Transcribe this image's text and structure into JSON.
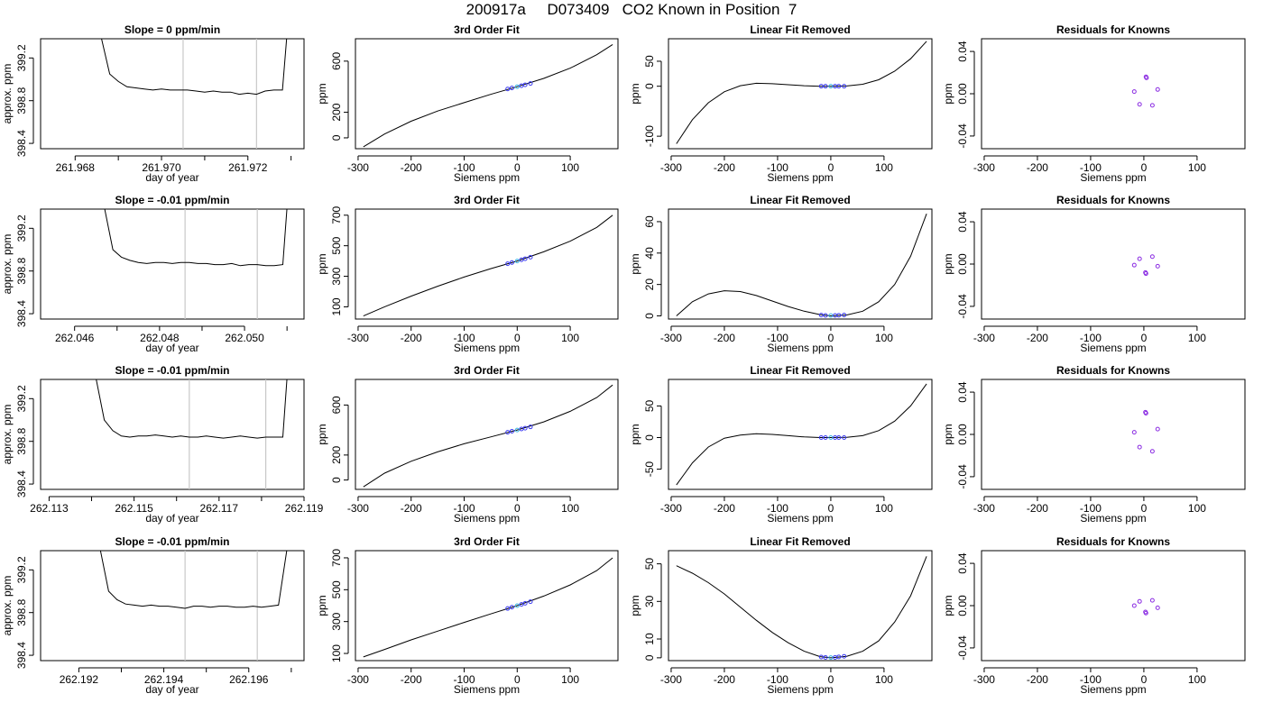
{
  "page_title": "200917a     D073409   CO2 Known in Position  7",
  "colors": {
    "frame": "#000000",
    "line": "#000000",
    "marker_lines": "#c8c8c8",
    "points": "#3b3bf2",
    "mid_point": "#3bb7e6",
    "residual_points": "#8a2be2"
  },
  "chart_data": [
    {
      "type": "line",
      "title": "Slope =  0  ppm/min",
      "xlabel": "day of year",
      "ylabel": "approx. ppm",
      "xlim": [
        261.9672,
        261.9733
      ],
      "ylim": [
        398.35,
        399.38
      ],
      "xticks": [
        261.968,
        261.97,
        261.972
      ],
      "xtick_labels": [
        "261.968",
        "261.970",
        "261.972"
      ],
      "xminor": [
        261.969,
        261.971,
        261.973
      ],
      "yticks": [
        398.4,
        398.8,
        399.2
      ],
      "ytick_labels": [
        "398.4",
        "398.8",
        "399.2"
      ],
      "vlines": [
        261.9705,
        261.9722
      ],
      "x": [
        261.9686,
        261.9688,
        261.969,
        261.9692,
        261.9694,
        261.9696,
        261.9698,
        261.97,
        261.9702,
        261.9704,
        261.9706,
        261.9708,
        261.971,
        261.9712,
        261.9714,
        261.9716,
        261.9718,
        261.972,
        261.9722,
        261.9724,
        261.9726,
        261.9728,
        261.9729
      ],
      "y": [
        399.4,
        399.05,
        398.98,
        398.93,
        398.92,
        398.91,
        398.9,
        398.91,
        398.9,
        398.9,
        398.9,
        398.89,
        398.88,
        398.89,
        398.88,
        398.88,
        398.86,
        398.87,
        398.86,
        398.89,
        398.9,
        398.9,
        399.4
      ]
    },
    {
      "type": "line",
      "title": "3rd Order Fit",
      "xlabel": "Siemens ppm",
      "ylabel": "ppm",
      "xlim": [
        -305,
        190
      ],
      "ylim": [
        -85,
        775
      ],
      "xticks": [
        -300,
        -200,
        -100,
        0,
        100
      ],
      "xtick_labels": [
        "-300",
        "-200",
        "-100",
        "0",
        "100"
      ],
      "yticks": [
        0,
        200,
        600
      ],
      "ytick_labels": [
        "0",
        "200",
        "600"
      ],
      "x": [
        -290,
        -250,
        -200,
        -150,
        -100,
        -50,
        0,
        50,
        100,
        150,
        180
      ],
      "y": [
        -70,
        30,
        130,
        210,
        275,
        340,
        400,
        465,
        545,
        650,
        730
      ],
      "points_x": [
        -18,
        -10,
        0,
        8,
        15,
        25
      ],
      "points_y": [
        382,
        390,
        400,
        408,
        415,
        425
      ]
    },
    {
      "type": "line",
      "title": "Linear Fit Removed",
      "xlabel": "Siemens ppm",
      "ylabel": "ppm",
      "xlim": [
        -305,
        190
      ],
      "ylim": [
        -125,
        95
      ],
      "xticks": [
        -300,
        -200,
        -100,
        0,
        100
      ],
      "xtick_labels": [
        "-300",
        "-200",
        "-100",
        "0",
        "100"
      ],
      "yticks": [
        -100,
        0,
        50
      ],
      "ytick_labels": [
        "-100",
        "0",
        "50"
      ],
      "x": [
        -290,
        -260,
        -230,
        -200,
        -170,
        -140,
        -110,
        -80,
        -50,
        -20,
        0,
        30,
        60,
        90,
        120,
        150,
        180
      ],
      "y": [
        -115,
        -67,
        -33,
        -11,
        1,
        6,
        5,
        3,
        1,
        0,
        0,
        0.5,
        4,
        13,
        30,
        55,
        90
      ],
      "points_x": [
        -18,
        -10,
        0,
        8,
        15,
        25
      ],
      "points_y": [
        0,
        0,
        0,
        0,
        0,
        0
      ]
    },
    {
      "type": "scatter",
      "title": "Residuals for Knowns",
      "xlabel": "Siemens ppm",
      "ylabel": "ppm",
      "xlim": [
        -305,
        190
      ],
      "ylim": [
        -0.052,
        0.052
      ],
      "xticks": [
        -300,
        -200,
        -100,
        0,
        100
      ],
      "xtick_labels": [
        "-300",
        "-200",
        "-100",
        "0",
        "100"
      ],
      "yticks": [
        -0.04,
        0.0,
        0.04
      ],
      "ytick_labels": [
        "-0.04",
        "0.00",
        "0.04"
      ],
      "x": [
        -18,
        -8,
        4,
        5,
        16,
        26
      ],
      "y": [
        0.002,
        -0.01,
        0.016,
        0.015,
        -0.011,
        0.004
      ]
    },
    {
      "type": "line",
      "title": "Slope =  -0.01  ppm/min",
      "xlabel": "day of year",
      "ylabel": "approx. ppm",
      "xlim": [
        262.0452,
        262.0514
      ],
      "ylim": [
        398.35,
        399.38
      ],
      "xticks": [
        262.046,
        262.048,
        262.05
      ],
      "xtick_labels": [
        "262.046",
        "262.048",
        "262.050"
      ],
      "xminor": [
        262.047,
        262.049,
        262.051
      ],
      "yticks": [
        398.4,
        398.8,
        399.2
      ],
      "ytick_labels": [
        "398.4",
        "398.8",
        "399.2"
      ],
      "vlines": [
        262.0486,
        262.0503
      ],
      "x": [
        262.0467,
        262.0469,
        262.0471,
        262.0473,
        262.0475,
        262.0477,
        262.0479,
        262.0481,
        262.0483,
        262.0485,
        262.0487,
        262.0489,
        262.0491,
        262.0493,
        262.0495,
        262.0497,
        262.0499,
        262.0501,
        262.0503,
        262.0505,
        262.0507,
        262.0509,
        262.051
      ],
      "y": [
        399.4,
        399.0,
        398.93,
        398.9,
        398.88,
        398.87,
        398.88,
        398.88,
        398.87,
        398.88,
        398.88,
        398.87,
        398.87,
        398.86,
        398.86,
        398.87,
        398.85,
        398.86,
        398.86,
        398.85,
        398.85,
        398.86,
        399.4
      ]
    },
    {
      "type": "line",
      "title": "3rd Order Fit",
      "xlabel": "Siemens ppm",
      "ylabel": "ppm",
      "xlim": [
        -305,
        190
      ],
      "ylim": [
        20,
        740
      ],
      "xticks": [
        -300,
        -200,
        -100,
        0,
        100
      ],
      "xtick_labels": [
        "-300",
        "-200",
        "-100",
        "0",
        "100"
      ],
      "yticks": [
        100,
        300,
        500,
        700
      ],
      "ytick_labels": [
        "100",
        "300",
        "500",
        "700"
      ],
      "x": [
        -290,
        -250,
        -200,
        -150,
        -100,
        -50,
        0,
        50,
        100,
        150,
        180
      ],
      "y": [
        40,
        100,
        170,
        235,
        295,
        350,
        400,
        460,
        530,
        620,
        700
      ],
      "points_x": [
        -18,
        -10,
        0,
        8,
        15,
        25
      ],
      "points_y": [
        382,
        390,
        400,
        408,
        415,
        425
      ]
    },
    {
      "type": "line",
      "title": "Linear Fit Removed",
      "xlabel": "Siemens ppm",
      "ylabel": "ppm",
      "xlim": [
        -305,
        190
      ],
      "ylim": [
        -2,
        68
      ],
      "xticks": [
        -300,
        -200,
        -100,
        0,
        100
      ],
      "xtick_labels": [
        "-300",
        "-200",
        "-100",
        "0",
        "100"
      ],
      "yticks": [
        0,
        20,
        40,
        60
      ],
      "ytick_labels": [
        "0",
        "20",
        "40",
        "60"
      ],
      "x": [
        -290,
        -260,
        -230,
        -200,
        -170,
        -140,
        -110,
        -80,
        -50,
        -20,
        0,
        30,
        60,
        90,
        120,
        150,
        180
      ],
      "y": [
        0,
        9,
        14,
        16,
        15.5,
        13,
        9.5,
        6,
        3,
        0.8,
        0,
        0.6,
        3,
        9,
        20,
        38,
        65
      ],
      "points_x": [
        -18,
        -10,
        0,
        8,
        15,
        25
      ],
      "points_y": [
        0.5,
        0.3,
        0.2,
        0.3,
        0.4,
        0.6
      ]
    },
    {
      "type": "scatter",
      "title": "Residuals for Knowns",
      "xlabel": "Siemens ppm",
      "ylabel": "ppm",
      "xlim": [
        -305,
        190
      ],
      "ylim": [
        -0.052,
        0.052
      ],
      "xticks": [
        -300,
        -200,
        -100,
        0,
        100
      ],
      "xtick_labels": [
        "-300",
        "-200",
        "-100",
        "0",
        "100"
      ],
      "yticks": [
        -0.04,
        0.0,
        0.04
      ],
      "ytick_labels": [
        "-0.04",
        "0.00",
        "0.04"
      ],
      "x": [
        -18,
        -8,
        3,
        4,
        16,
        26
      ],
      "y": [
        -0.001,
        0.005,
        -0.008,
        -0.009,
        0.007,
        -0.002
      ]
    },
    {
      "type": "line",
      "title": "Slope =  -0.01  ppm/min",
      "xlabel": "day of year",
      "ylabel": "approx. ppm",
      "xlim": [
        262.1128,
        262.119
      ],
      "ylim": [
        398.35,
        399.38
      ],
      "xticks": [
        262.113,
        262.115,
        262.117,
        262.119
      ],
      "xtick_labels": [
        "262.113",
        "262.115",
        "262.117",
        "262.119"
      ],
      "xminor": [
        262.114,
        262.116,
        262.118
      ],
      "yticks": [
        398.4,
        398.8,
        399.2
      ],
      "ytick_labels": [
        "398.4",
        "398.8",
        "399.2"
      ],
      "vlines": [
        262.1163,
        262.1181
      ],
      "x": [
        262.1141,
        262.1143,
        262.1145,
        262.1147,
        262.1149,
        262.1151,
        262.1153,
        262.1155,
        262.1157,
        262.1159,
        262.1161,
        262.1163,
        262.1165,
        262.1167,
        262.1169,
        262.1171,
        262.1173,
        262.1175,
        262.1177,
        262.1179,
        262.1181,
        262.1183,
        262.1185,
        262.1186
      ],
      "y": [
        399.4,
        399.0,
        398.9,
        398.85,
        398.84,
        398.85,
        398.85,
        398.86,
        398.85,
        398.84,
        398.85,
        398.84,
        398.84,
        398.85,
        398.84,
        398.83,
        398.84,
        398.85,
        398.84,
        398.83,
        398.84,
        398.84,
        398.84,
        399.4
      ]
    },
    {
      "type": "line",
      "title": "3rd Order Fit",
      "xlabel": "Siemens ppm",
      "ylabel": "ppm",
      "xlim": [
        -305,
        190
      ],
      "ylim": [
        -75,
        805
      ],
      "xticks": [
        -300,
        -200,
        -100,
        0,
        100
      ],
      "xtick_labels": [
        "-300",
        "-200",
        "-100",
        "0",
        "100"
      ],
      "yticks": [
        0,
        200,
        600
      ],
      "ytick_labels": [
        "0",
        "200",
        "600"
      ],
      "x": [
        -290,
        -250,
        -200,
        -150,
        -100,
        -50,
        0,
        50,
        100,
        150,
        180
      ],
      "y": [
        -55,
        55,
        150,
        225,
        290,
        345,
        400,
        465,
        550,
        660,
        760
      ],
      "points_x": [
        -18,
        -10,
        0,
        8,
        15,
        25
      ],
      "points_y": [
        382,
        390,
        400,
        408,
        415,
        425
      ]
    },
    {
      "type": "line",
      "title": "Linear Fit Removed",
      "xlabel": "Siemens ppm",
      "ylabel": "ppm",
      "xlim": [
        -305,
        190
      ],
      "ylim": [
        -82,
        92
      ],
      "xticks": [
        -300,
        -200,
        -100,
        0,
        100
      ],
      "xtick_labels": [
        "-300",
        "-200",
        "-100",
        "0",
        "100"
      ],
      "yticks": [
        -50,
        0,
        50
      ],
      "ytick_labels": [
        "-50",
        "0",
        "50"
      ],
      "x": [
        -290,
        -260,
        -230,
        -200,
        -170,
        -140,
        -110,
        -80,
        -50,
        -20,
        0,
        30,
        60,
        90,
        120,
        150,
        180
      ],
      "y": [
        -75,
        -40,
        -15,
        -1,
        4,
        6,
        5,
        3,
        1,
        0,
        0,
        0.4,
        3,
        11,
        26,
        50,
        85
      ],
      "points_x": [
        -18,
        -10,
        0,
        8,
        15,
        25
      ],
      "points_y": [
        0,
        0,
        0,
        0,
        0,
        0
      ]
    },
    {
      "type": "scatter",
      "title": "Residuals for Knowns",
      "xlabel": "Siemens ppm",
      "ylabel": "ppm",
      "xlim": [
        -305,
        190
      ],
      "ylim": [
        -0.052,
        0.052
      ],
      "xticks": [
        -300,
        -200,
        -100,
        0,
        100
      ],
      "xtick_labels": [
        "-300",
        "-200",
        "-100",
        "0",
        "100"
      ],
      "yticks": [
        -0.04,
        0.0,
        0.04
      ],
      "ytick_labels": [
        "-0.04",
        "0.00",
        "0.04"
      ],
      "x": [
        -18,
        -8,
        3,
        4,
        16,
        26
      ],
      "y": [
        0.002,
        -0.012,
        0.021,
        0.02,
        -0.016,
        0.005
      ]
    },
    {
      "type": "line",
      "title": "Slope =  -0.01  ppm/min",
      "xlabel": "day of year",
      "ylabel": "approx. ppm",
      "xlim": [
        262.1911,
        262.1973
      ],
      "ylim": [
        398.35,
        399.38
      ],
      "xticks": [
        262.192,
        262.194,
        262.196
      ],
      "xtick_labels": [
        "262.192",
        "262.194",
        "262.196"
      ],
      "xminor": [
        262.191,
        262.193,
        262.195,
        262.197
      ],
      "yticks": [
        398.4,
        398.8,
        399.2
      ],
      "ytick_labels": [
        "398.4",
        "398.8",
        "399.2"
      ],
      "vlines": [
        262.1945,
        262.1962
      ],
      "x": [
        262.1925,
        262.1927,
        262.1929,
        262.1931,
        262.1933,
        262.1935,
        262.1937,
        262.1939,
        262.1941,
        262.1943,
        262.1945,
        262.1947,
        262.1949,
        262.1951,
        262.1953,
        262.1955,
        262.1957,
        262.1959,
        262.1961,
        262.1963,
        262.1965,
        262.1967,
        262.1969
      ],
      "y": [
        399.4,
        399.0,
        398.92,
        398.88,
        398.87,
        398.86,
        398.87,
        398.86,
        398.86,
        398.85,
        398.84,
        398.86,
        398.86,
        398.85,
        398.86,
        398.86,
        398.85,
        398.85,
        398.86,
        398.85,
        398.86,
        398.87,
        399.4
      ]
    },
    {
      "type": "line",
      "title": "3rd Order Fit",
      "xlabel": "Siemens ppm",
      "ylabel": "ppm",
      "xlim": [
        -305,
        190
      ],
      "ylim": [
        55,
        745
      ],
      "xticks": [
        -300,
        -200,
        -100,
        0,
        100
      ],
      "xtick_labels": [
        "-300",
        "-200",
        "-100",
        "0",
        "100"
      ],
      "yticks": [
        100,
        300,
        500,
        700
      ],
      "ytick_labels": [
        "100",
        "300",
        "500",
        "700"
      ],
      "x": [
        -290,
        -250,
        -200,
        -150,
        -100,
        -50,
        0,
        50,
        100,
        150,
        180
      ],
      "y": [
        78,
        125,
        185,
        240,
        295,
        348,
        400,
        460,
        530,
        620,
        700
      ],
      "points_x": [
        -18,
        -10,
        0,
        8,
        15,
        25
      ],
      "points_y": [
        382,
        390,
        400,
        408,
        415,
        425
      ]
    },
    {
      "type": "line",
      "title": "Linear Fit Removed",
      "xlabel": "Siemens ppm",
      "ylabel": "ppm",
      "xlim": [
        -305,
        190
      ],
      "ylim": [
        -1.5,
        57
      ],
      "xticks": [
        -300,
        -200,
        -100,
        0,
        100
      ],
      "xtick_labels": [
        "-300",
        "-200",
        "-100",
        "0",
        "100"
      ],
      "yticks": [
        0,
        10,
        30,
        50
      ],
      "ytick_labels": [
        "0",
        "10",
        "30",
        "50"
      ],
      "x": [
        -290,
        -260,
        -230,
        -200,
        -170,
        -140,
        -110,
        -80,
        -50,
        -20,
        0,
        30,
        60,
        90,
        120,
        150,
        180
      ],
      "y": [
        49,
        45,
        40,
        34,
        27,
        20,
        13.5,
        8,
        3.5,
        0.6,
        0,
        0.8,
        3.5,
        9,
        19,
        33,
        54
      ],
      "points_x": [
        -18,
        -10,
        0,
        8,
        15,
        25
      ],
      "points_y": [
        0.4,
        0.2,
        0.1,
        0.2,
        0.5,
        0.8
      ]
    },
    {
      "type": "scatter",
      "title": "Residuals for Knowns",
      "xlabel": "Siemens ppm",
      "ylabel": "ppm",
      "xlim": [
        -305,
        190
      ],
      "ylim": [
        -0.052,
        0.052
      ],
      "xticks": [
        -300,
        -200,
        -100,
        0,
        100
      ],
      "xtick_labels": [
        "-300",
        "-200",
        "-100",
        "0",
        "100"
      ],
      "yticks": [
        -0.04,
        0.0,
        0.04
      ],
      "ytick_labels": [
        "-0.04",
        "0.00",
        "0.04"
      ],
      "x": [
        -18,
        -8,
        3,
        4,
        16,
        26
      ],
      "y": [
        0.0,
        0.004,
        -0.006,
        -0.007,
        0.005,
        -0.002
      ]
    }
  ]
}
